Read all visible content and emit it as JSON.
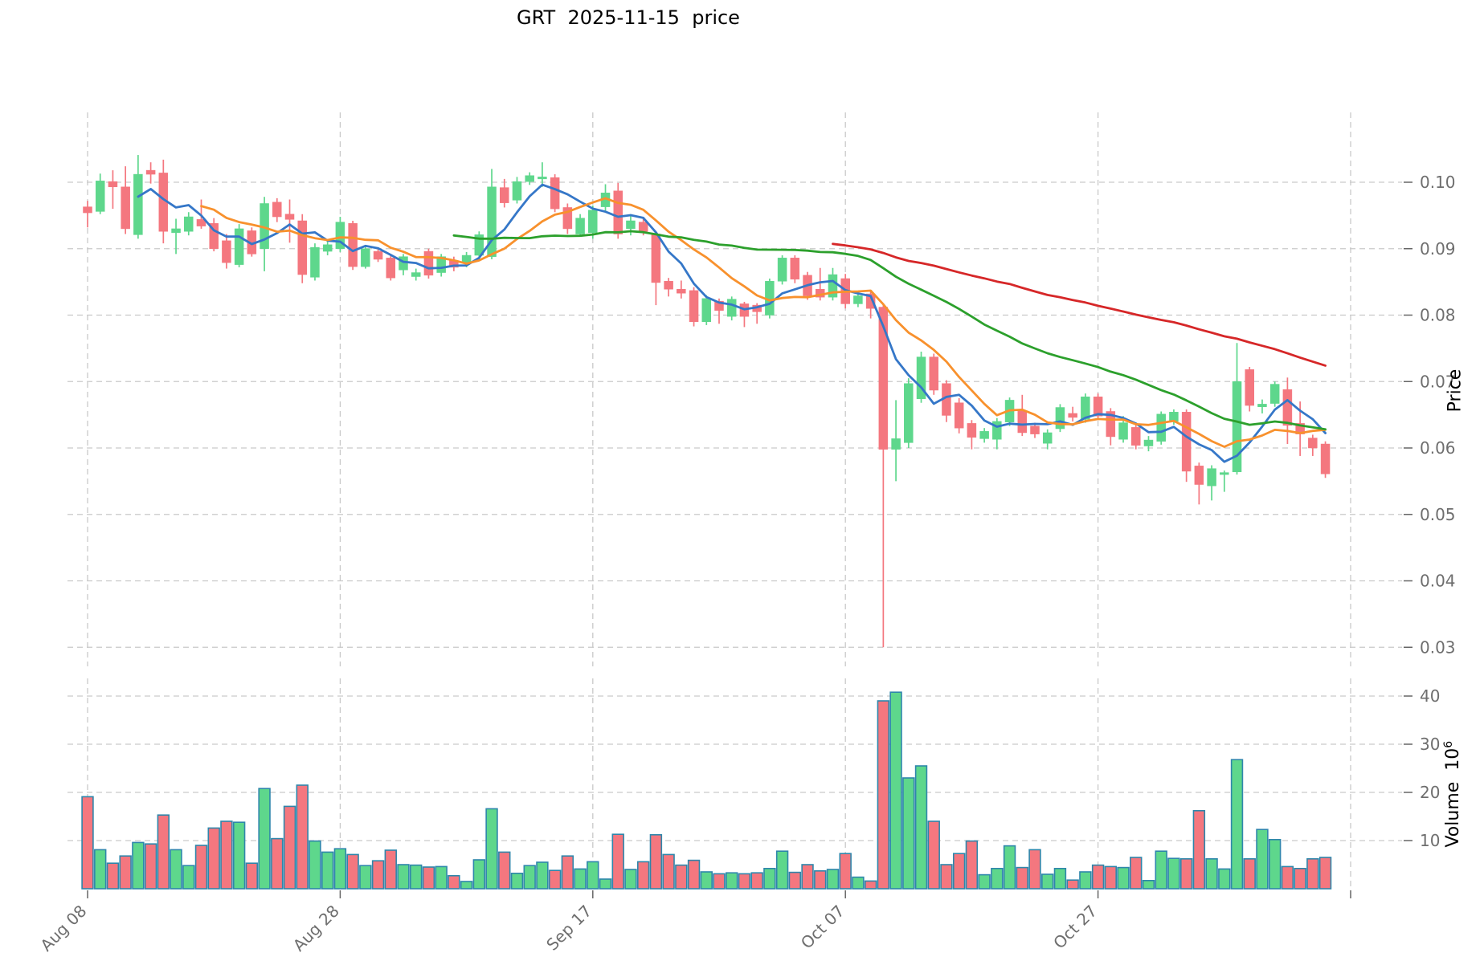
{
  "title": "GRT  2025-11-15  price",
  "price_axis": {
    "label": "Price",
    "ticks": [
      {
        "label": "0.10",
        "value": 0.1
      },
      {
        "label": "0.09",
        "value": 0.09
      },
      {
        "label": "0.08",
        "value": 0.08
      },
      {
        "label": "0.07",
        "value": 0.07
      },
      {
        "label": "0.06",
        "value": 0.06
      },
      {
        "label": "0.05",
        "value": 0.05
      },
      {
        "label": "0.04",
        "value": 0.04
      },
      {
        "label": "0.03",
        "value": 0.03
      }
    ]
  },
  "volume_axis": {
    "label": "Volume  ",
    "unit_base": "10",
    "unit_exp": "6",
    "ticks": [
      {
        "label": "40",
        "value": 40
      },
      {
        "label": "30",
        "value": 30
      },
      {
        "label": "20",
        "value": 20
      },
      {
        "label": "10",
        "value": 10
      }
    ]
  },
  "x_axis": {
    "ticks": [
      {
        "label": "Aug 08",
        "day_index": 0
      },
      {
        "label": "Aug 28",
        "day_index": 20
      },
      {
        "label": "Sep 17",
        "day_index": 40
      },
      {
        "label": "Oct 07",
        "day_index": 60
      },
      {
        "label": "Oct 27",
        "day_index": 80
      },
      {
        "label": "",
        "day_index": 100
      }
    ]
  },
  "chart_data": {
    "type": "candlestick+volume",
    "symbol": "GRT",
    "as_of_date": "2025-11-15",
    "title": "GRT  2025-11-15  price",
    "ylabel": "Price",
    "ylabel_lower": "Volume 10^6",
    "grid": true,
    "ylim_price": [
      0.027,
      0.1105
    ],
    "ylim_volume": [
      0,
      43.5
    ],
    "moving_averages": [
      {
        "name": "SMA5",
        "period": 5,
        "color": "#3577c8"
      },
      {
        "name": "SMA10",
        "period": 10,
        "color": "#f8912d"
      },
      {
        "name": "SMA30",
        "period": 30,
        "color": "#2ca02c"
      },
      {
        "name": "SMA60",
        "period": 60,
        "color": "#d62728"
      }
    ],
    "colors": {
      "up": "#5ed78c",
      "down": "#f4777f",
      "volume_outline": "#2e86ab",
      "grid": "#c9c9c9",
      "tick_text": "#6e6e6e",
      "title_text": "#000000"
    },
    "dates": [
      "2025-08-08",
      "2025-08-09",
      "2025-08-10",
      "2025-08-11",
      "2025-08-12",
      "2025-08-13",
      "2025-08-14",
      "2025-08-15",
      "2025-08-16",
      "2025-08-17",
      "2025-08-18",
      "2025-08-19",
      "2025-08-20",
      "2025-08-21",
      "2025-08-22",
      "2025-08-23",
      "2025-08-24",
      "2025-08-25",
      "2025-08-26",
      "2025-08-27",
      "2025-08-28",
      "2025-08-29",
      "2025-08-30",
      "2025-08-31",
      "2025-09-01",
      "2025-09-02",
      "2025-09-03",
      "2025-09-04",
      "2025-09-05",
      "2025-09-06",
      "2025-09-07",
      "2025-09-08",
      "2025-09-09",
      "2025-09-10",
      "2025-09-11",
      "2025-09-12",
      "2025-09-13",
      "2025-09-14",
      "2025-09-15",
      "2025-09-16",
      "2025-09-17",
      "2025-09-18",
      "2025-09-19",
      "2025-09-20",
      "2025-09-21",
      "2025-09-22",
      "2025-09-23",
      "2025-09-24",
      "2025-09-25",
      "2025-09-26",
      "2025-09-27",
      "2025-09-28",
      "2025-09-29",
      "2025-09-30",
      "2025-10-01",
      "2025-10-02",
      "2025-10-03",
      "2025-10-04",
      "2025-10-05",
      "2025-10-06",
      "2025-10-07",
      "2025-10-08",
      "2025-10-09",
      "2025-10-10",
      "2025-10-11",
      "2025-10-12",
      "2025-10-13",
      "2025-10-14",
      "2025-10-15",
      "2025-10-16",
      "2025-10-17",
      "2025-10-18",
      "2025-10-19",
      "2025-10-20",
      "2025-10-21",
      "2025-10-22",
      "2025-10-23",
      "2025-10-24",
      "2025-10-25",
      "2025-10-26",
      "2025-10-27",
      "2025-10-28",
      "2025-10-29",
      "2025-10-30",
      "2025-10-31",
      "2025-11-01",
      "2025-11-02",
      "2025-11-03",
      "2025-11-04",
      "2025-11-05",
      "2025-11-06",
      "2025-11-07",
      "2025-11-08",
      "2025-11-09",
      "2025-11-10",
      "2025-11-11",
      "2025-11-12",
      "2025-11-13",
      "2025-11-14"
    ],
    "open": [
      0.0963,
      0.0956,
      0.1001,
      0.0993,
      0.0921,
      0.1018,
      0.1014,
      0.0924,
      0.0926,
      0.0944,
      0.0938,
      0.0912,
      0.0876,
      0.0927,
      0.09,
      0.097,
      0.0952,
      0.0942,
      0.0857,
      0.0896,
      0.09,
      0.0938,
      0.0873,
      0.0896,
      0.0886,
      0.0868,
      0.0858,
      0.0896,
      0.0864,
      0.0882,
      0.0878,
      0.089,
      0.0888,
      0.0992,
      0.0973,
      0.1001,
      0.1005,
      0.1007,
      0.0962,
      0.0922,
      0.0924,
      0.0963,
      0.0987,
      0.093,
      0.094,
      0.0922,
      0.0851,
      0.0839,
      0.0837,
      0.079,
      0.0821,
      0.0798,
      0.0817,
      0.0815,
      0.08,
      0.0851,
      0.0886,
      0.086,
      0.0839,
      0.0827,
      0.0855,
      0.0817,
      0.0832,
      0.0812,
      0.0598,
      0.0608,
      0.0674,
      0.0737,
      0.0697,
      0.0668,
      0.0637,
      0.0614,
      0.0613,
      0.0639,
      0.0656,
      0.0633,
      0.0607,
      0.0629,
      0.0652,
      0.0643,
      0.0677,
      0.0655,
      0.0613,
      0.0631,
      0.0603,
      0.061,
      0.064,
      0.0654,
      0.0573,
      0.0543,
      0.056,
      0.0564,
      0.0718,
      0.0662,
      0.0667,
      0.0688,
      0.0637,
      0.0615,
      0.0606
    ],
    "high": [
      0.0972,
      0.1013,
      0.1018,
      0.1024,
      0.1041,
      0.103,
      0.1034,
      0.0945,
      0.0955,
      0.0974,
      0.0946,
      0.0922,
      0.0937,
      0.0932,
      0.0978,
      0.0976,
      0.0974,
      0.0952,
      0.0908,
      0.0912,
      0.0948,
      0.0942,
      0.0905,
      0.0902,
      0.089,
      0.0892,
      0.087,
      0.09,
      0.0892,
      0.0888,
      0.0895,
      0.0926,
      0.102,
      0.1005,
      0.1008,
      0.1015,
      0.103,
      0.1012,
      0.0968,
      0.0952,
      0.0965,
      0.0997,
      0.0999,
      0.0952,
      0.0946,
      0.0925,
      0.0856,
      0.0852,
      0.0842,
      0.083,
      0.0825,
      0.0828,
      0.082,
      0.0818,
      0.0855,
      0.089,
      0.089,
      0.0865,
      0.0871,
      0.0871,
      0.0862,
      0.0836,
      0.0838,
      0.0815,
      0.0672,
      0.0705,
      0.0745,
      0.0742,
      0.0702,
      0.0675,
      0.0642,
      0.063,
      0.0645,
      0.0676,
      0.068,
      0.0638,
      0.0628,
      0.0666,
      0.0662,
      0.0682,
      0.0682,
      0.066,
      0.0648,
      0.0636,
      0.0618,
      0.0655,
      0.0658,
      0.0658,
      0.0578,
      0.0574,
      0.0566,
      0.0758,
      0.0722,
      0.0673,
      0.07,
      0.0706,
      0.067,
      0.062,
      0.061
    ],
    "low": [
      0.0932,
      0.0952,
      0.096,
      0.0922,
      0.0915,
      0.0998,
      0.0908,
      0.0892,
      0.092,
      0.093,
      0.0896,
      0.087,
      0.0872,
      0.0888,
      0.0866,
      0.094,
      0.0909,
      0.0848,
      0.0852,
      0.089,
      0.0895,
      0.0868,
      0.087,
      0.088,
      0.0852,
      0.086,
      0.0852,
      0.0855,
      0.0858,
      0.0866,
      0.0872,
      0.0884,
      0.0884,
      0.0962,
      0.0968,
      0.0996,
      0.0993,
      0.0955,
      0.0922,
      0.0918,
      0.0915,
      0.0955,
      0.0915,
      0.092,
      0.092,
      0.0815,
      0.0828,
      0.0825,
      0.0783,
      0.0785,
      0.0787,
      0.0792,
      0.0782,
      0.0787,
      0.0795,
      0.0846,
      0.0848,
      0.0823,
      0.0822,
      0.0822,
      0.081,
      0.0812,
      0.0795,
      0.03,
      0.055,
      0.06,
      0.0668,
      0.068,
      0.0639,
      0.0622,
      0.0598,
      0.0608,
      0.0598,
      0.0633,
      0.0618,
      0.0615,
      0.0598,
      0.0624,
      0.064,
      0.0638,
      0.0642,
      0.0604,
      0.0608,
      0.0598,
      0.0595,
      0.0605,
      0.0635,
      0.0549,
      0.0515,
      0.0521,
      0.0534,
      0.056,
      0.0655,
      0.0652,
      0.0662,
      0.0606,
      0.0588,
      0.0588,
      0.0555
    ],
    "close": [
      0.0954,
      0.1002,
      0.0993,
      0.093,
      0.1012,
      0.1012,
      0.0926,
      0.093,
      0.0948,
      0.0934,
      0.09,
      0.0879,
      0.093,
      0.0892,
      0.0968,
      0.0948,
      0.0944,
      0.0861,
      0.0902,
      0.0906,
      0.094,
      0.0873,
      0.09,
      0.0884,
      0.0856,
      0.0888,
      0.0864,
      0.086,
      0.0888,
      0.0872,
      0.089,
      0.0921,
      0.0993,
      0.0969,
      0.1001,
      0.101,
      0.1008,
      0.096,
      0.093,
      0.0946,
      0.0958,
      0.0984,
      0.0922,
      0.0942,
      0.0926,
      0.0849,
      0.0839,
      0.0833,
      0.079,
      0.0825,
      0.0807,
      0.0824,
      0.0798,
      0.0805,
      0.0851,
      0.0886,
      0.0854,
      0.0829,
      0.0827,
      0.0861,
      0.0817,
      0.0829,
      0.081,
      0.0598,
      0.0614,
      0.0697,
      0.0737,
      0.0687,
      0.0649,
      0.063,
      0.0616,
      0.0625,
      0.064,
      0.0672,
      0.0623,
      0.0621,
      0.0623,
      0.0661,
      0.0646,
      0.0677,
      0.0648,
      0.0617,
      0.0638,
      0.0604,
      0.0612,
      0.0651,
      0.0654,
      0.0565,
      0.0545,
      0.0569,
      0.0563,
      0.07,
      0.0664,
      0.0666,
      0.0696,
      0.0634,
      0.0621,
      0.06,
      0.0561
    ],
    "volume_millions": [
      19.1,
      8.1,
      5.3,
      6.8,
      9.6,
      9.3,
      15.3,
      8.1,
      4.8,
      9.0,
      12.6,
      14.0,
      13.8,
      5.3,
      20.8,
      10.4,
      17.1,
      21.5,
      9.9,
      7.6,
      8.3,
      7.1,
      4.8,
      5.8,
      8.0,
      5.0,
      4.9,
      4.5,
      4.6,
      2.7,
      1.5,
      6.0,
      16.6,
      7.6,
      3.2,
      4.8,
      5.5,
      3.8,
      6.8,
      4.1,
      5.6,
      2.0,
      11.3,
      4.0,
      5.6,
      11.2,
      7.1,
      4.9,
      5.9,
      3.5,
      3.1,
      3.3,
      3.1,
      3.3,
      4.2,
      7.8,
      3.4,
      5.0,
      3.7,
      4.0,
      7.3,
      2.4,
      1.6,
      39.0,
      40.8,
      23.0,
      25.5,
      14.0,
      5.0,
      7.3,
      9.9,
      2.9,
      4.2,
      8.9,
      4.4,
      8.1,
      3.0,
      4.2,
      1.8,
      3.5,
      4.9,
      4.6,
      4.4,
      6.5,
      1.7,
      7.8,
      6.3,
      6.2,
      16.2,
      6.2,
      4.1,
      26.8,
      6.2,
      12.3,
      10.2,
      4.6,
      4.2,
      6.2,
      6.5
    ]
  }
}
